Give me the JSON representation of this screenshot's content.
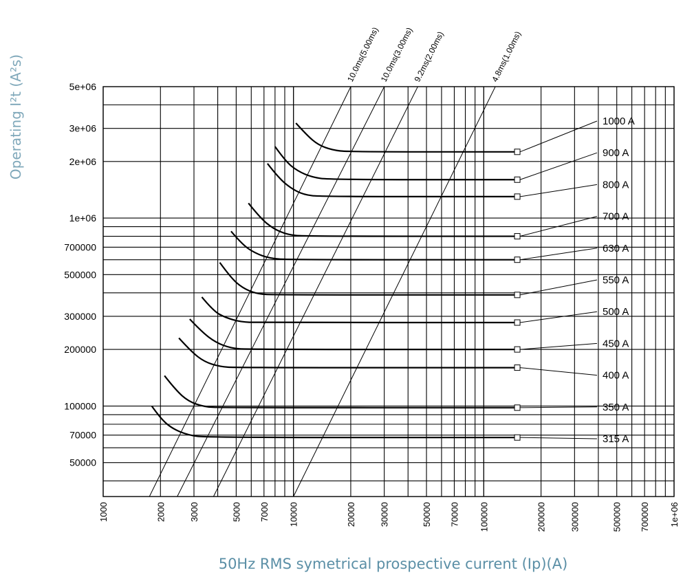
{
  "chart_data": {
    "type": "line",
    "title": "",
    "xlabel": "50Hz RMS symetrical prospective current (Ip)(A)",
    "ylabel": "Operating I²t (A²s)",
    "xscale": "log",
    "yscale": "log",
    "xlim": [
      1000,
      1000000
    ],
    "ylim": [
      33000,
      5000000
    ],
    "x_ticks": [
      "1000",
      "2000",
      "3000",
      "5000",
      "7000",
      "10000",
      "20000",
      "30000",
      "50000",
      "70000",
      "100000",
      "200000",
      "300000",
      "500000",
      "700000",
      "1e+06"
    ],
    "y_ticks": [
      "5e+06",
      "3e+06",
      "2e+06",
      "1e+06",
      "700000",
      "500000",
      "300000",
      "200000",
      "100000",
      "70000",
      "50000"
    ],
    "grid": true,
    "series": [
      {
        "name": "315 A",
        "x": [
          1800,
          2000,
          2300,
          2800,
          3500,
          150000
        ],
        "y": [
          100000,
          86000,
          76000,
          70000,
          68000,
          68000
        ]
      },
      {
        "name": "350 A",
        "x": [
          2100,
          2400,
          2800,
          3400,
          4200,
          150000
        ],
        "y": [
          145000,
          122000,
          106000,
          99000,
          98000,
          98000
        ]
      },
      {
        "name": "400 A",
        "x": [
          2500,
          2900,
          3400,
          4100,
          5000,
          150000
        ],
        "y": [
          230000,
          195000,
          172000,
          162000,
          160000,
          160000
        ]
      },
      {
        "name": "450 A",
        "x": [
          2850,
          3300,
          3900,
          4700,
          5800,
          150000
        ],
        "y": [
          290000,
          248000,
          218000,
          203000,
          200000,
          200000
        ]
      },
      {
        "name": "500 A",
        "x": [
          3300,
          3800,
          4400,
          5300,
          6500,
          150000
        ],
        "y": [
          380000,
          320000,
          295000,
          280000,
          278000,
          278000
        ]
      },
      {
        "name": "550 A",
        "x": [
          4100,
          4700,
          5400,
          6400,
          8000,
          150000
        ],
        "y": [
          580000,
          480000,
          425000,
          395000,
          390000,
          390000
        ]
      },
      {
        "name": "630 A",
        "x": [
          4700,
          5400,
          6300,
          7500,
          9500,
          150000
        ],
        "y": [
          850000,
          720000,
          650000,
          610000,
          600000,
          600000
        ]
      },
      {
        "name": "700 A",
        "x": [
          5800,
          6700,
          7800,
          9300,
          11500,
          150000
        ],
        "y": [
          1200000,
          1000000,
          880000,
          815000,
          800000,
          800000
        ]
      },
      {
        "name": "800 A",
        "x": [
          7300,
          8300,
          9600,
          11300,
          14000,
          150000
        ],
        "y": [
          1950000,
          1650000,
          1450000,
          1330000,
          1300000,
          1300000
        ]
      },
      {
        "name": "900 A",
        "x": [
          8000,
          9100,
          10500,
          12500,
          15500,
          150000
        ],
        "y": [
          2400000,
          2000000,
          1780000,
          1650000,
          1600000,
          1600000
        ]
      },
      {
        "name": "1000 A",
        "x": [
          10300,
          11800,
          13500,
          16000,
          19500,
          150000
        ],
        "y": [
          3200000,
          2750000,
          2450000,
          2300000,
          2250000,
          2250000
        ]
      }
    ],
    "reference_lines": [
      {
        "name": "10.0ms(5.00ms)",
        "x": [
          1750,
          20000
        ],
        "y": [
          33000,
          5000000
        ]
      },
      {
        "name": "10.0ms(3.00ms)",
        "x": [
          2450,
          30000
        ],
        "y": [
          33000,
          5000000
        ]
      },
      {
        "name": "9.2ms(2.00ms)",
        "x": [
          3800,
          45000
        ],
        "y": [
          33000,
          5000000
        ]
      },
      {
        "name": "4.8ms(1.00ms)",
        "x": [
          10000,
          115000
        ],
        "y": [
          33000,
          5000000
        ]
      }
    ]
  }
}
